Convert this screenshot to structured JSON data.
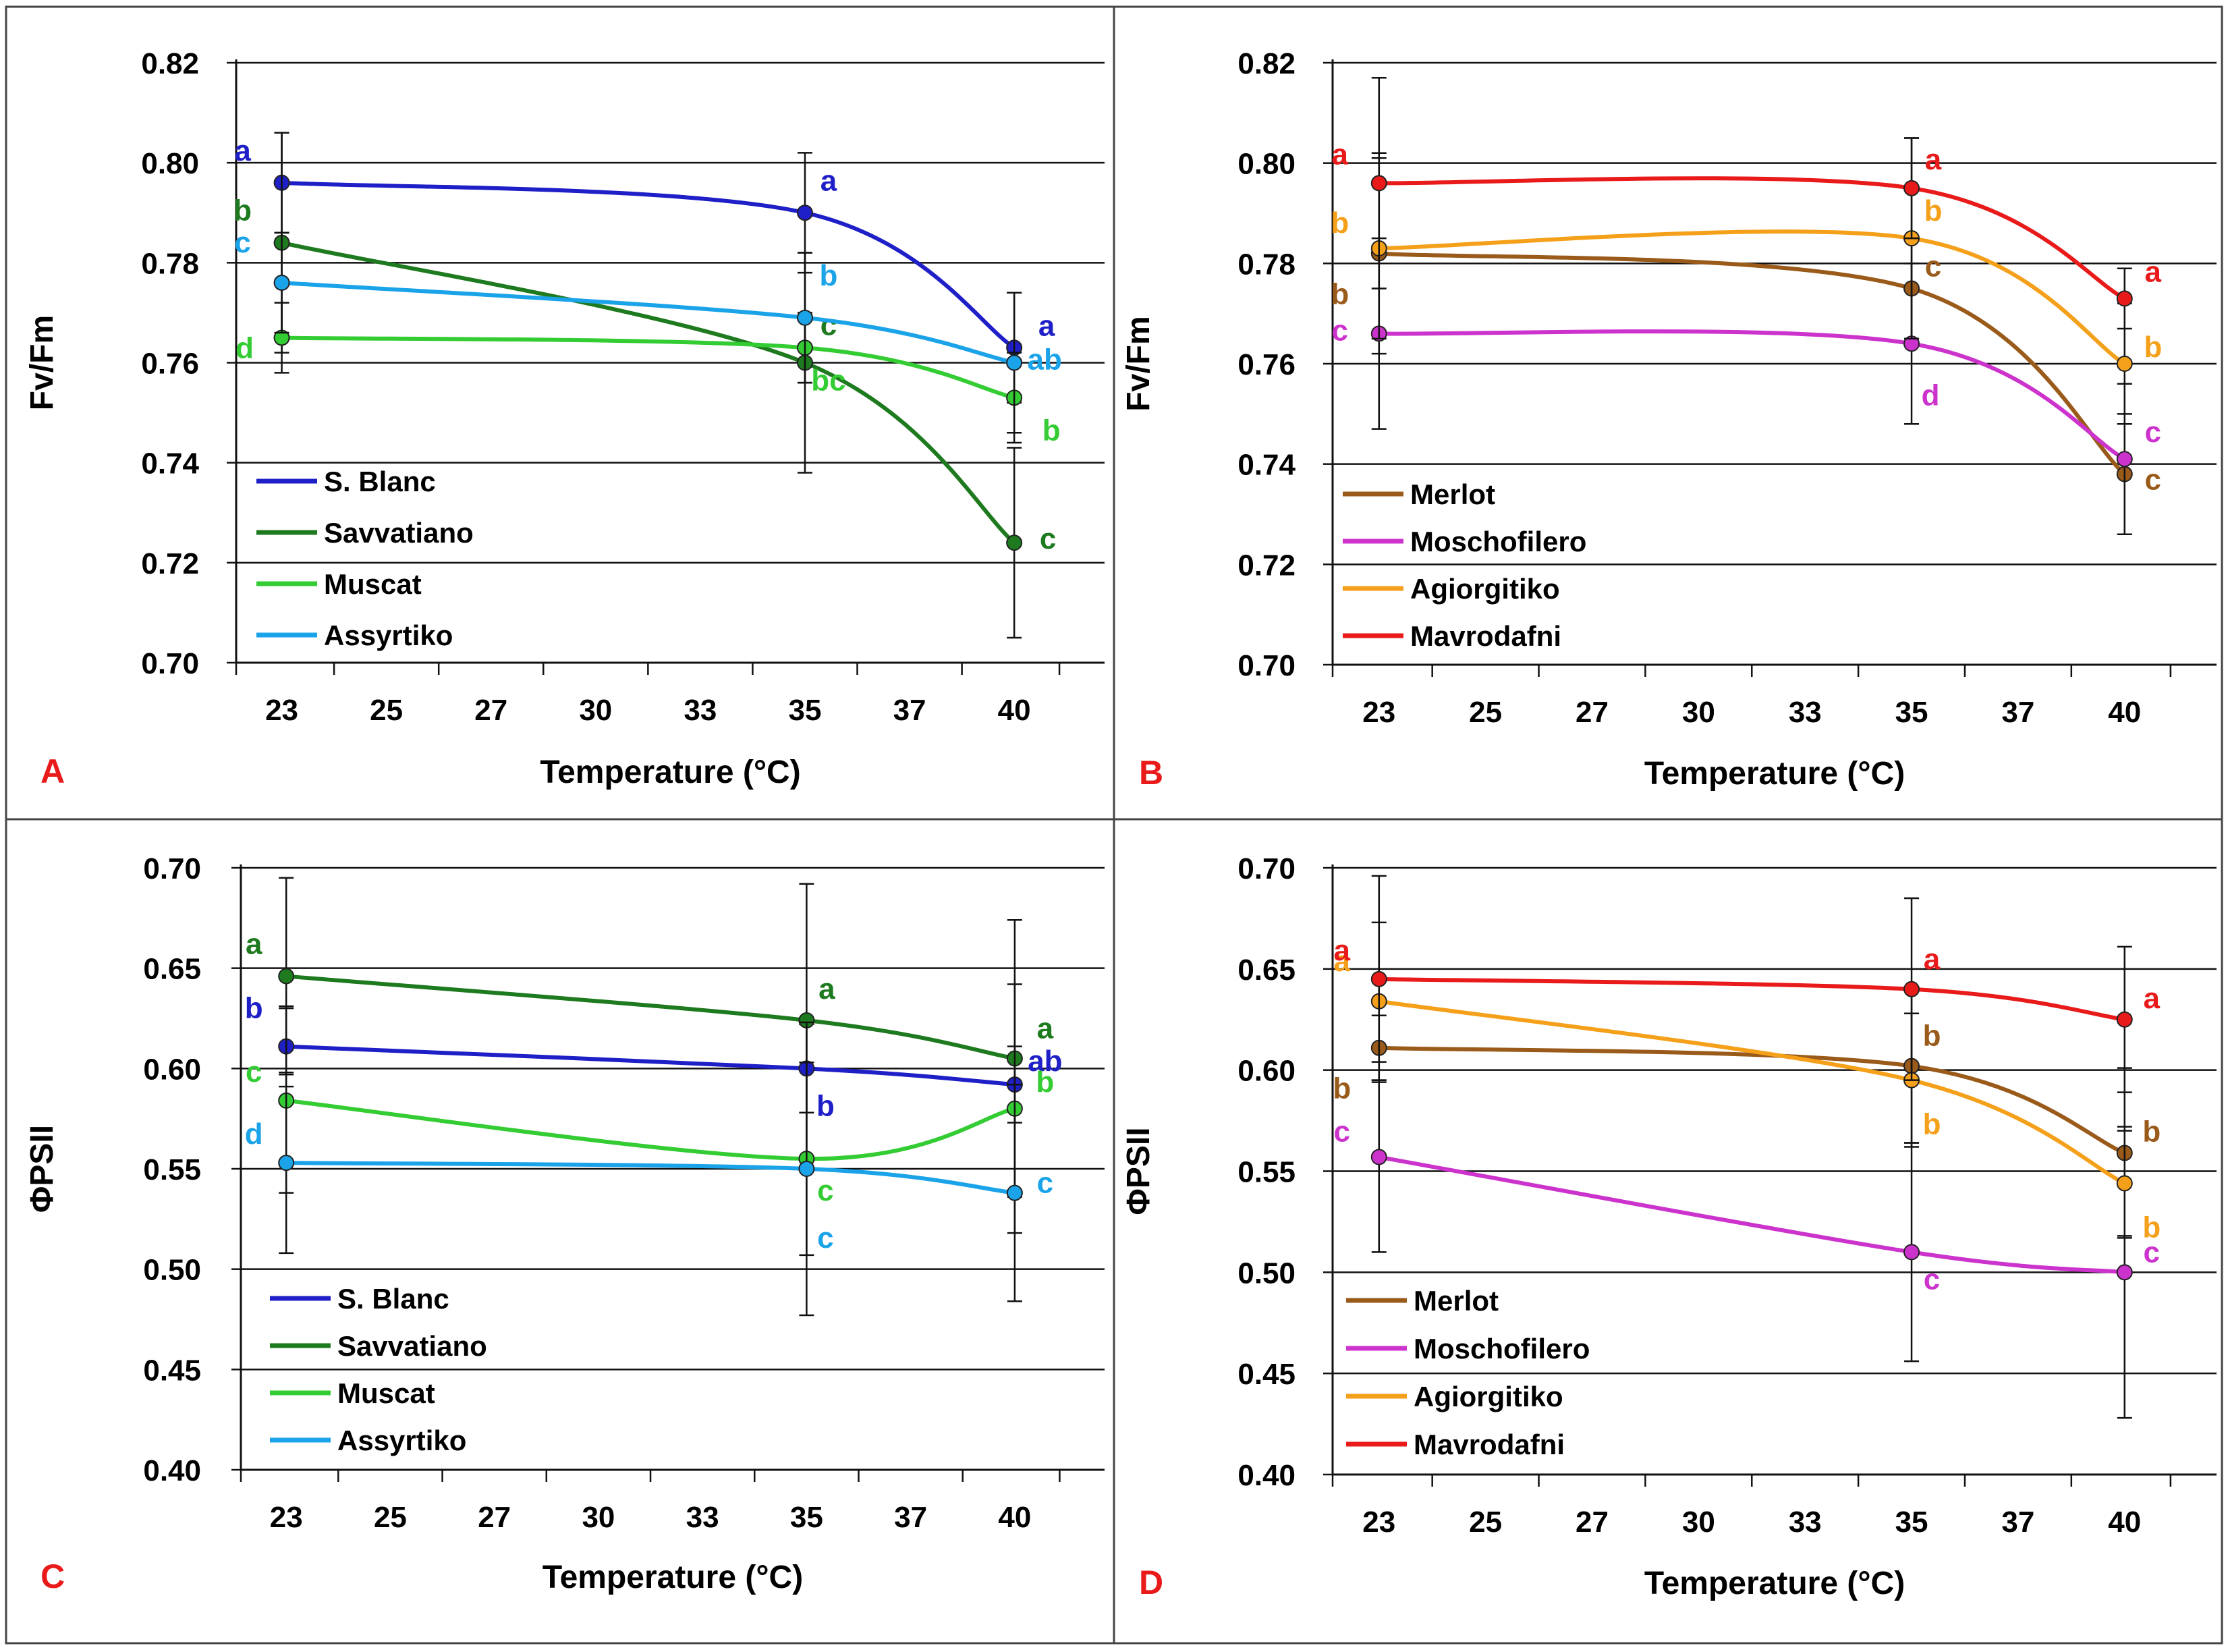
{
  "chart_data": [
    {
      "type": "line",
      "panel_label": "A",
      "title": "",
      "xlabel": "Temperature (°C)",
      "ylabel": "Fv/Fm",
      "x_ticks": [
        "23",
        "25",
        "27",
        "30",
        "33",
        "35",
        "37",
        "40"
      ],
      "y_ticks": [
        "0.70",
        "0.72",
        "0.74",
        "0.76",
        "0.78",
        "0.80",
        "0.82"
      ],
      "ylim": [
        0.7,
        0.82
      ],
      "grid": true,
      "legend_position": "bottom-left",
      "series": [
        {
          "name": "S. Blanc",
          "color": "#1f1fc8",
          "x": [
            "23",
            "35",
            "40"
          ],
          "values": [
            0.796,
            0.79,
            0.763
          ],
          "error": [
            0.01,
            0.012,
            0.011
          ],
          "letters": [
            "a",
            "a",
            "a"
          ]
        },
        {
          "name": "Savvatiano",
          "color": "#1e7a1e",
          "x": [
            "23",
            "35",
            "40"
          ],
          "values": [
            0.784,
            0.76,
            0.724
          ],
          "error": [
            0.022,
            0.022,
            0.019
          ],
          "letters": [
            "b",
            "c",
            "c"
          ]
        },
        {
          "name": "Muscat",
          "color": "#33cc33",
          "x": [
            "23",
            "35",
            "40"
          ],
          "values": [
            0.765,
            0.763,
            0.753
          ],
          "error": [
            0.007,
            0.007,
            0.009
          ],
          "letters": [
            "d",
            "bc",
            "b"
          ]
        },
        {
          "name": "Assyrtiko",
          "color": "#1aa3e8",
          "x": [
            "23",
            "35",
            "40"
          ],
          "values": [
            0.776,
            0.769,
            0.76
          ],
          "error": [
            0.01,
            0.013,
            0.014
          ],
          "letters": [
            "c",
            "b",
            "ab"
          ]
        }
      ]
    },
    {
      "type": "line",
      "panel_label": "B",
      "title": "",
      "xlabel": "Temperature (°C)",
      "ylabel": "Fv/Fm",
      "x_ticks": [
        "23",
        "25",
        "27",
        "30",
        "33",
        "35",
        "37",
        "40"
      ],
      "y_ticks": [
        "0.70",
        "0.72",
        "0.74",
        "0.76",
        "0.78",
        "0.80",
        "0.82"
      ],
      "ylim": [
        0.7,
        0.82
      ],
      "grid": true,
      "legend_position": "bottom-left",
      "series": [
        {
          "name": "Merlot",
          "color": "#9a5a1a",
          "x": [
            "23",
            "35",
            "40"
          ],
          "values": [
            0.782,
            0.775,
            0.738
          ],
          "error": [
            0.02,
            0.01,
            0.012
          ],
          "letters": [
            "b",
            "c",
            "c"
          ]
        },
        {
          "name": "Moschofilero",
          "color": "#cc33cc",
          "x": [
            "23",
            "35",
            "40"
          ],
          "values": [
            0.766,
            0.764,
            0.741
          ],
          "error": [
            0.019,
            0.016,
            0.015
          ],
          "letters": [
            "c",
            "d",
            "c"
          ]
        },
        {
          "name": "Agiorgitiko",
          "color": "#f5a01a",
          "x": [
            "23",
            "35",
            "40"
          ],
          "values": [
            0.783,
            0.785,
            0.76
          ],
          "error": [
            0.018,
            0.02,
            0.012
          ],
          "letters": [
            "b",
            "b",
            "b"
          ]
        },
        {
          "name": "Mavrodafni",
          "color": "#e81a1a",
          "x": [
            "23",
            "35",
            "40"
          ],
          "values": [
            0.796,
            0.795,
            0.773
          ],
          "error": [
            0.021,
            0.01,
            0.006
          ],
          "letters": [
            "a",
            "a",
            "a"
          ]
        }
      ]
    },
    {
      "type": "line",
      "panel_label": "C",
      "title": "",
      "xlabel": "Temperature (°C)",
      "ylabel": "ΦPSII",
      "x_ticks": [
        "23",
        "25",
        "27",
        "30",
        "33",
        "35",
        "37",
        "40"
      ],
      "y_ticks": [
        "0.40",
        "0.45",
        "0.50",
        "0.55",
        "0.60",
        "0.65",
        "0.70"
      ],
      "ylim": [
        0.4,
        0.7
      ],
      "grid": true,
      "legend_position": "bottom-left",
      "series": [
        {
          "name": "S. Blanc",
          "color": "#1f1fc8",
          "x": [
            "23",
            "35",
            "40"
          ],
          "values": [
            0.611,
            0.6,
            0.592
          ],
          "error": [
            0.02,
            0.022,
            0.019
          ],
          "letters": [
            "b",
            "b",
            "ab"
          ]
        },
        {
          "name": "Savvatiano",
          "color": "#1e7a1e",
          "x": [
            "23",
            "35",
            "40"
          ],
          "values": [
            0.646,
            0.624,
            0.605
          ],
          "error": [
            0.049,
            0.068,
            0.069
          ],
          "letters": [
            "a",
            "a",
            "a"
          ]
        },
        {
          "name": "Muscat",
          "color": "#33cc33",
          "x": [
            "23",
            "35",
            "40"
          ],
          "values": [
            0.584,
            0.555,
            0.58
          ],
          "error": [
            0.046,
            0.048,
            0.062
          ],
          "letters": [
            "c",
            "c",
            "b"
          ]
        },
        {
          "name": "Assyrtiko",
          "color": "#1aa3e8",
          "x": [
            "23",
            "35",
            "40"
          ],
          "values": [
            0.553,
            0.55,
            0.538
          ],
          "error": [
            0.045,
            0.073,
            0.054
          ],
          "letters": [
            "d",
            "c",
            "c"
          ]
        }
      ]
    },
    {
      "type": "line",
      "panel_label": "D",
      "title": "",
      "xlabel": "Temperature (°C)",
      "ylabel": "ΦPSII",
      "x_ticks": [
        "23",
        "25",
        "27",
        "30",
        "33",
        "35",
        "37",
        "40"
      ],
      "y_ticks": [
        "0.40",
        "0.45",
        "0.50",
        "0.55",
        "0.60",
        "0.65",
        "0.70"
      ],
      "ylim": [
        0.4,
        0.7
      ],
      "grid": true,
      "legend_position": "bottom-left",
      "series": [
        {
          "name": "Merlot",
          "color": "#9a5a1a",
          "x": [
            "23",
            "35",
            "40"
          ],
          "values": [
            0.611,
            0.602,
            0.559
          ],
          "error": [
            0.016,
            0.038,
            0.042
          ],
          "letters": [
            "b",
            "b",
            "b"
          ]
        },
        {
          "name": "Moschofilero",
          "color": "#cc33cc",
          "x": [
            "23",
            "35",
            "40"
          ],
          "values": [
            0.557,
            0.51,
            0.5
          ],
          "error": [
            0.047,
            0.054,
            0.072
          ],
          "letters": [
            "c",
            "c",
            "c"
          ]
        },
        {
          "name": "Agiorgitiko",
          "color": "#f5a01a",
          "x": [
            "23",
            "35",
            "40"
          ],
          "values": [
            0.634,
            0.595,
            0.544
          ],
          "error": [
            0.039,
            0.033,
            0.026
          ],
          "letters": [
            "a",
            "b",
            "b"
          ]
        },
        {
          "name": "Mavrodafni",
          "color": "#e81a1a",
          "x": [
            "23",
            "35",
            "40"
          ],
          "values": [
            0.645,
            0.64,
            0.625
          ],
          "error": [
            0.051,
            0.045,
            0.036
          ],
          "letters": [
            "a",
            "a",
            "a"
          ]
        }
      ]
    }
  ]
}
